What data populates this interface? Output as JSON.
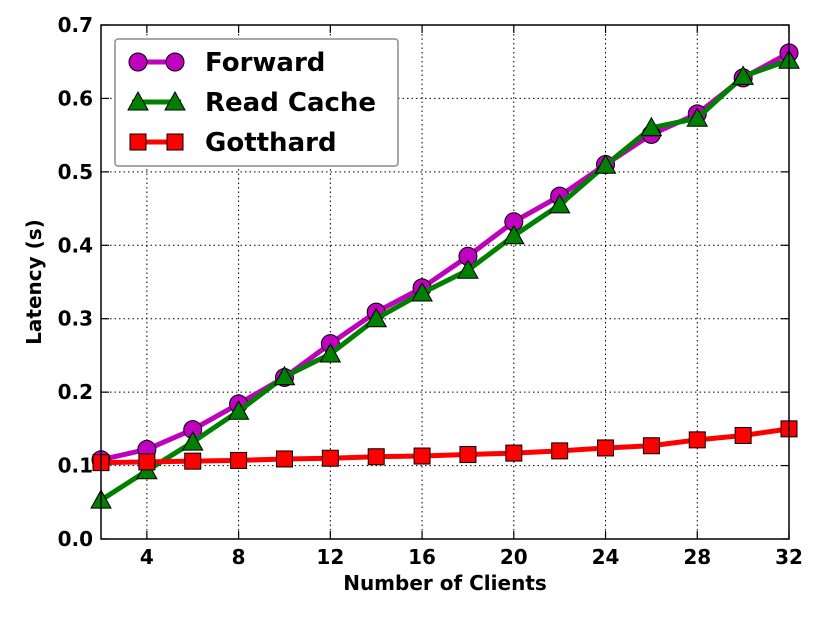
{
  "chart_data": {
    "type": "line",
    "title": "",
    "xlabel": "Number of Clients",
    "ylabel": "Latency (s)",
    "xlim": [
      2,
      32
    ],
    "ylim": [
      0.0,
      0.7
    ],
    "xticks": [
      4,
      8,
      12,
      16,
      20,
      24,
      28,
      32
    ],
    "yticks": [
      0.0,
      0.1,
      0.2,
      0.3,
      0.4,
      0.5,
      0.6,
      0.7
    ],
    "ytick_labels": [
      "0.0",
      "0.1",
      "0.2",
      "0.3",
      "0.4",
      "0.5",
      "0.6",
      "0.7"
    ],
    "grid": true,
    "legend_position": "top-left",
    "x": [
      2,
      4,
      6,
      8,
      10,
      12,
      14,
      16,
      18,
      20,
      22,
      24,
      26,
      28,
      30,
      32
    ],
    "series": [
      {
        "name": "Forward",
        "color": "#bf00bf",
        "marker": "circle",
        "values": [
          0.108,
          0.122,
          0.149,
          0.184,
          0.22,
          0.266,
          0.309,
          0.342,
          0.385,
          0.432,
          0.467,
          0.51,
          0.551,
          0.579,
          0.628,
          0.662
        ]
      },
      {
        "name": "Read Cache",
        "color": "#008000",
        "marker": "triangle",
        "values": [
          0.053,
          0.093,
          0.132,
          0.174,
          0.221,
          0.252,
          0.3,
          0.335,
          0.366,
          0.413,
          0.455,
          0.509,
          0.56,
          0.573,
          0.63,
          0.652
        ]
      },
      {
        "name": "Gotthard",
        "color": "#ff0000",
        "marker": "square",
        "values": [
          0.104,
          0.105,
          0.106,
          0.107,
          0.109,
          0.11,
          0.112,
          0.113,
          0.115,
          0.117,
          0.12,
          0.124,
          0.127,
          0.135,
          0.141,
          0.15
        ]
      }
    ]
  }
}
